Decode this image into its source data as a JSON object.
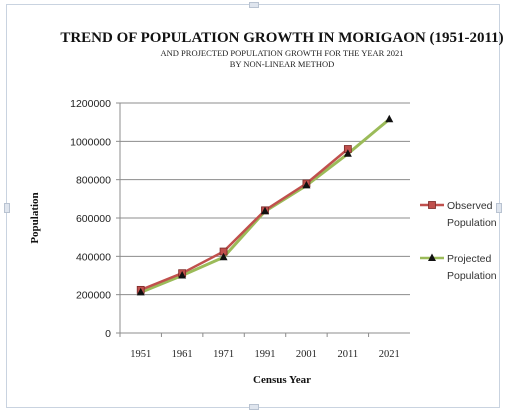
{
  "chart_data": {
    "type": "line",
    "title": "TREND OF POPULATION GROWTH IN MORIGAON (1951-2011)",
    "subtitle_1": "AND PROJECTED POPULATION GROWTH FOR THE YEAR 2021",
    "subtitle_2": "BY NON-LINEAR METHOD",
    "xlabel": "Census Year",
    "ylabel": "Population",
    "categories": [
      "1951",
      "1961",
      "1971",
      "1991",
      "2001",
      "2011",
      "2021"
    ],
    "y_ticks": [
      "0",
      "200000",
      "400000",
      "600000",
      "800000",
      "1000000",
      "1200000"
    ],
    "ylim": [
      0,
      1200000
    ],
    "grid": "horizontal",
    "legend_position": "right",
    "series": [
      {
        "name": "Observed Population",
        "name_lines": [
          "Observed",
          "Population"
        ],
        "color": "#c0504d",
        "marker": "square",
        "values": [
          225000,
          312000,
          425000,
          640000,
          780000,
          960000,
          null
        ]
      },
      {
        "name": "Projected Population",
        "name_lines": [
          "Projected",
          "Population"
        ],
        "color": "#9bbb59",
        "marker": "triangle",
        "values": [
          212000,
          300000,
          395000,
          635000,
          770000,
          935000,
          1115000
        ]
      }
    ]
  }
}
